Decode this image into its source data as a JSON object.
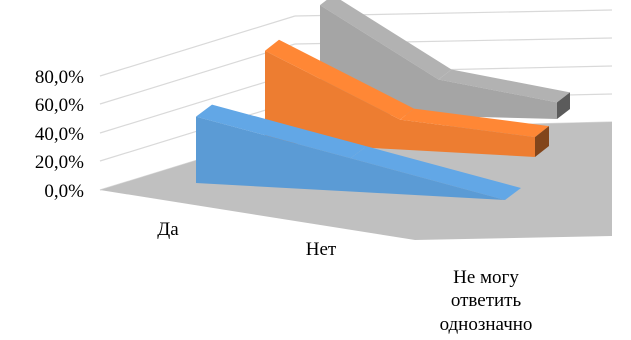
{
  "chart_data": {
    "type": "area",
    "view": "3d",
    "categories": [
      "Да",
      "Нет",
      "Не могу ответить однозначно"
    ],
    "category_lines": [
      [
        "Да"
      ],
      [
        "Нет"
      ],
      [
        "Не могу",
        "ответить",
        "однозначно"
      ]
    ],
    "y_ticks": [
      "0,0%",
      "20,0%",
      "40,0%",
      "60,0%",
      "80,0%"
    ],
    "ylim": [
      0,
      0.8
    ],
    "grid": true,
    "legend": "none",
    "series": [
      {
        "values": [
          0.4,
          0.2,
          0.0
        ],
        "color": "#5b9bd5"
      },
      {
        "values": [
          0.55,
          0.18,
          0.12
        ],
        "color": "#ed7d31"
      },
      {
        "values": [
          0.65,
          0.22,
          0.1
        ],
        "color": "#a5a5a5"
      }
    ]
  }
}
